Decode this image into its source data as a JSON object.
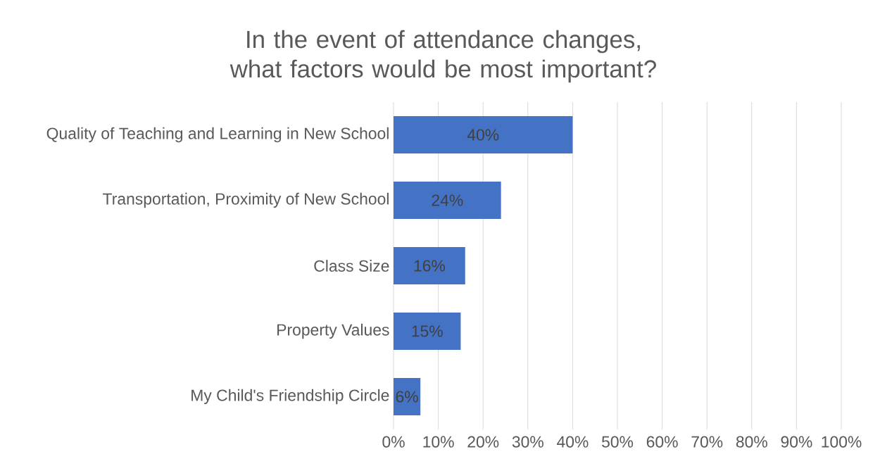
{
  "chart_data": {
    "type": "bar",
    "orientation": "horizontal",
    "title": "In the event of attendance changes, what factors would be most important?",
    "categories": [
      "Quality of Teaching and Learning in New School",
      "Transportation, Proximity of New School",
      "Class Size",
      "Property Values",
      "My Child's Friendship Circle"
    ],
    "values": [
      40,
      24,
      16,
      15,
      6
    ],
    "value_labels": [
      "40%",
      "24%",
      "16%",
      "15%",
      "6%"
    ],
    "color": "#4472c4",
    "xlim": [
      0,
      100
    ],
    "xticks": [
      {
        "value": 0,
        "label": "0%"
      },
      {
        "value": 10,
        "label": "10%"
      },
      {
        "value": 20,
        "label": "20%"
      },
      {
        "value": 30,
        "label": "30%"
      },
      {
        "value": 40,
        "label": "40%"
      },
      {
        "value": 50,
        "label": "50%"
      },
      {
        "value": 60,
        "label": "60%"
      },
      {
        "value": 70,
        "label": "70%"
      },
      {
        "value": 80,
        "label": "80%"
      },
      {
        "value": 90,
        "label": "90%"
      },
      {
        "value": 100,
        "label": "100%"
      }
    ],
    "grid": "x"
  }
}
